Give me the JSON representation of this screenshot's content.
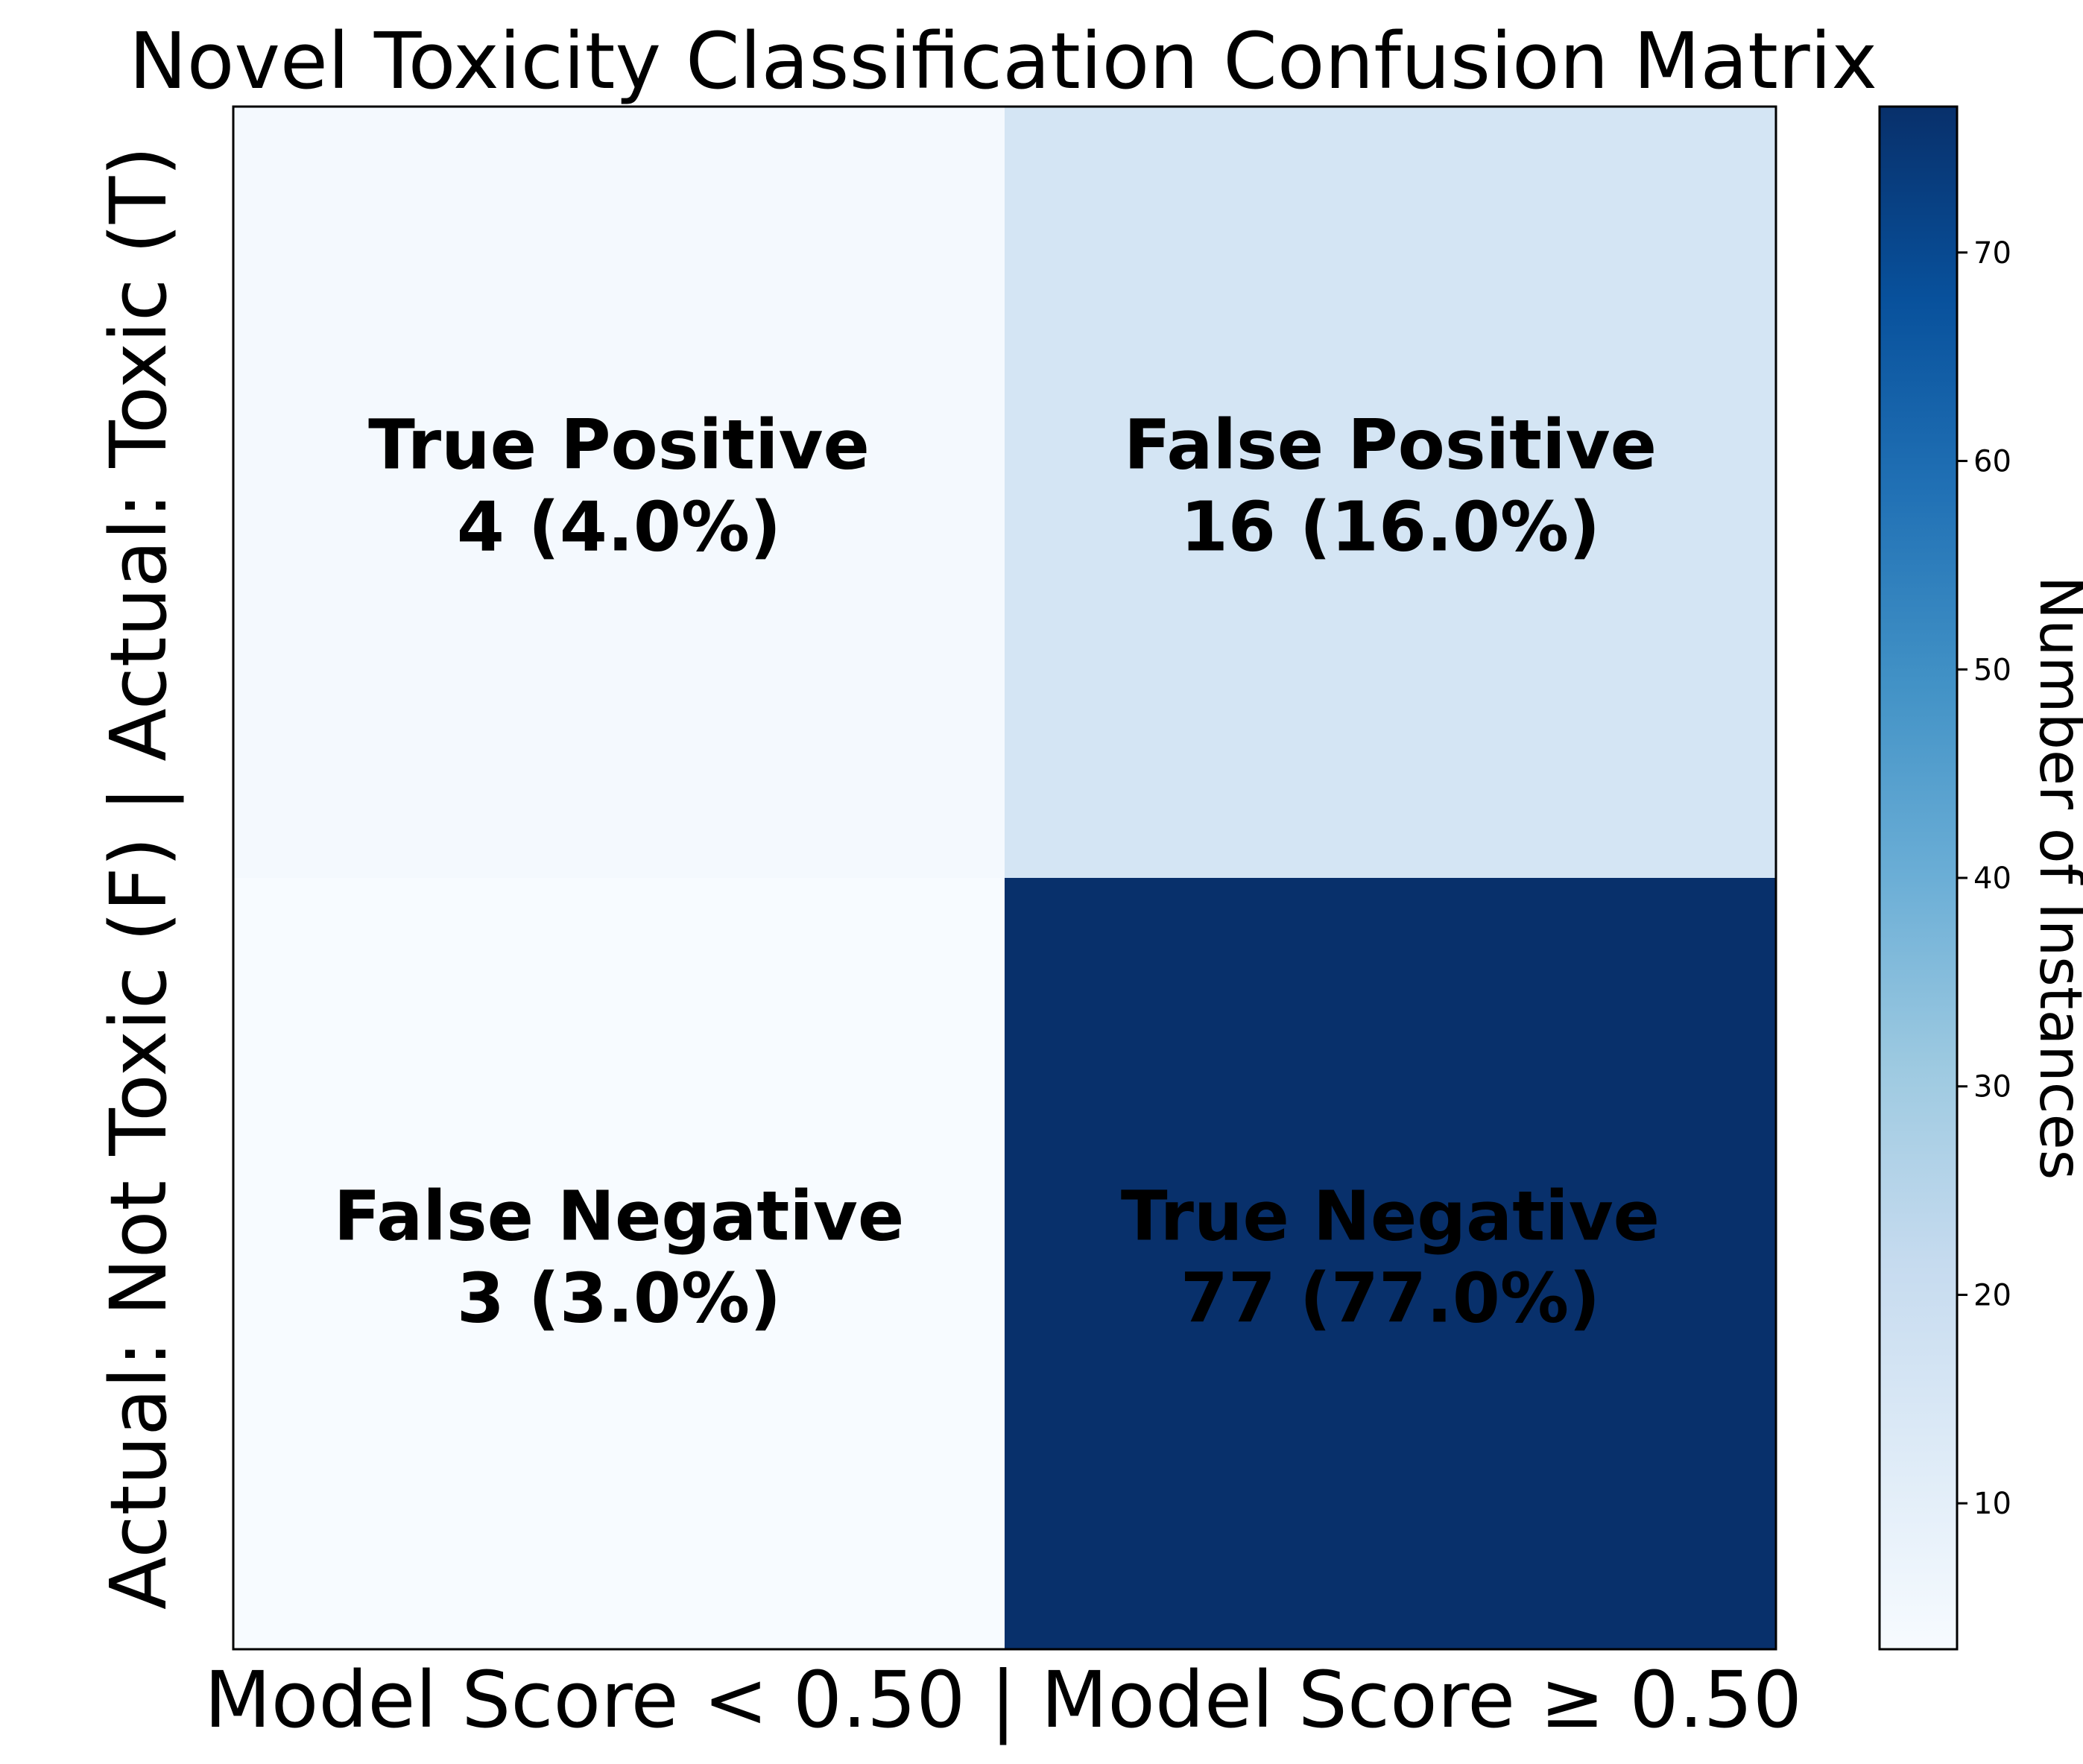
{
  "chart_data": {
    "type": "heatmap",
    "title": "Novel Toxicity Classification Confusion Matrix",
    "xlabel": "Model Score < 0.50 | Model Score ≥ 0.50",
    "ylabel": "Actual: Not Toxic (F) | Actual: Toxic (T)",
    "cells": [
      {
        "row": 0,
        "col": 0,
        "label": "True Positive",
        "value": 4,
        "percent": "4.0%"
      },
      {
        "row": 0,
        "col": 1,
        "label": "False Positive",
        "value": 16,
        "percent": "16.0%"
      },
      {
        "row": 1,
        "col": 0,
        "label": "False Negative",
        "value": 3,
        "percent": "3.0%"
      },
      {
        "row": 1,
        "col": 1,
        "label": "True Negative",
        "value": 77,
        "percent": "77.0%"
      }
    ],
    "colorbar": {
      "label": "Number of Instances",
      "min": 3,
      "max": 77,
      "ticks": [
        10,
        20,
        30,
        40,
        50,
        60,
        70
      ],
      "colormap": "Blues"
    },
    "colors": {
      "low": "#f7fbff",
      "high": "#08306b"
    }
  }
}
